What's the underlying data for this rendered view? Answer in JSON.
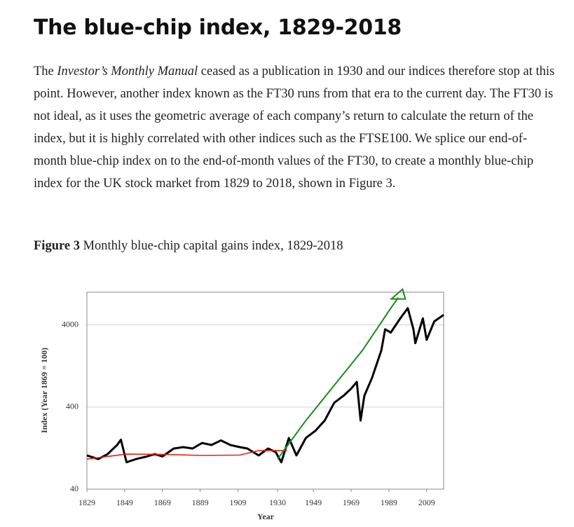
{
  "header": {
    "title": "The blue-chip index, 1829-2018"
  },
  "paragraph": [
    {
      "text": "The "
    },
    {
      "text": "Investor’s Monthly Manual",
      "italic": true
    },
    {
      "text": " ceased as a publication in 1930 and our indices therefore stop at this point. However, another index known as the FT30 runs from that era to the current day. The FT30 is not ideal, as it uses the geometric average of each company’s return to calculate the return of the index, but it is highly correlated with other indices such as the FTSE100. We splice our end-of-month blue-chip index on to the end-of-month values of the FT30, to create a monthly blue-chip index for the UK stock market from 1829 to 2018, shown in Figure 3."
    }
  ],
  "figure": {
    "label": "Figure 3",
    "caption": " Monthly blue-chip capital gains index, 1829-2018"
  },
  "chart_data": {
    "type": "line",
    "log_y": true,
    "grid": true,
    "x_label": "Year",
    "y_label": "Index (Year 1869 = 100)",
    "xlim": [
      1829,
      2018
    ],
    "xticks": [
      1829,
      1849,
      1869,
      1889,
      1909,
      1930,
      1949,
      1969,
      1989,
      2009
    ],
    "ylim": [
      40,
      10000
    ],
    "yticks": [
      40,
      400,
      4000
    ],
    "series": [
      {
        "color": "#000000",
        "width": 3,
        "x": [
          1829,
          1835,
          1840,
          1845,
          1847,
          1850,
          1855,
          1860,
          1865,
          1869,
          1875,
          1880,
          1885,
          1890,
          1895,
          1900,
          1905,
          1910,
          1914,
          1920,
          1925,
          1929,
          1932,
          1936,
          1940,
          1945,
          1950,
          1955,
          1960,
          1965,
          1969,
          1972,
          1974,
          1976,
          1980,
          1985,
          1987,
          1990,
          1995,
          1999,
          2002,
          2003,
          2007,
          2009,
          2013,
          2018
        ],
        "values": [
          103,
          93,
          107,
          138,
          160,
          85,
          93,
          99,
          107,
          100,
          125,
          130,
          125,
          146,
          138,
          157,
          138,
          130,
          125,
          103,
          125,
          113,
          85,
          168,
          103,
          168,
          205,
          274,
          450,
          550,
          670,
          810,
          274,
          550,
          900,
          1960,
          3540,
          3230,
          4800,
          6400,
          3540,
          2400,
          4800,
          2630,
          4400,
          5300
        ]
      },
      {
        "color": "#e02020",
        "width": 1.6,
        "x": [
          1829,
          1850,
          1870,
          1890,
          1910,
          1920,
          1935
        ],
        "values": [
          93,
          107,
          106,
          103,
          104,
          118,
          118
        ]
      },
      {
        "color": "#1a8a1a",
        "width": 2,
        "arrow": true,
        "x": [
          1930,
          1945,
          1960,
          1975,
          1990,
          1994
        ],
        "values": [
          93,
          274,
          735,
          1960,
          6400,
          8600
        ]
      }
    ]
  }
}
